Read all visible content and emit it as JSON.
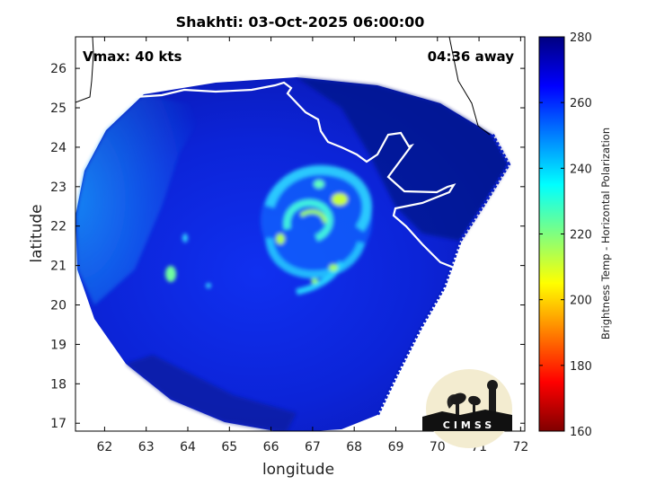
{
  "chart_data": {
    "type": "heatmap",
    "title": "Shakhti: 03-Oct-2025 06:00:00",
    "xlabel": "longitude",
    "ylabel": "latitude",
    "xlim": [
      61.3,
      72.1
    ],
    "ylim": [
      16.8,
      26.8
    ],
    "xticks": [
      62,
      63,
      64,
      65,
      66,
      67,
      68,
      69,
      70,
      71,
      72
    ],
    "yticks": [
      17,
      18,
      19,
      20,
      21,
      22,
      23,
      24,
      25,
      26
    ],
    "grid": false,
    "annotations": {
      "vmax": "Vmax: 40 kts",
      "time_away": "04:36 away"
    },
    "colorbar": {
      "label": "Brightness Temp - Horizontal Polarization",
      "range": [
        160,
        280
      ],
      "ticks": [
        280,
        260,
        240,
        220,
        200,
        180,
        160
      ],
      "colormap": "jet"
    },
    "swath": {
      "center": [
        66.9,
        21.9
      ],
      "background_value": 266,
      "rainband_min_value": 210
    }
  },
  "logo": {
    "text": "CIMSS"
  },
  "colors": {
    "coastline": "#ffffff",
    "land": "#ffffff",
    "frame": "#000000"
  }
}
